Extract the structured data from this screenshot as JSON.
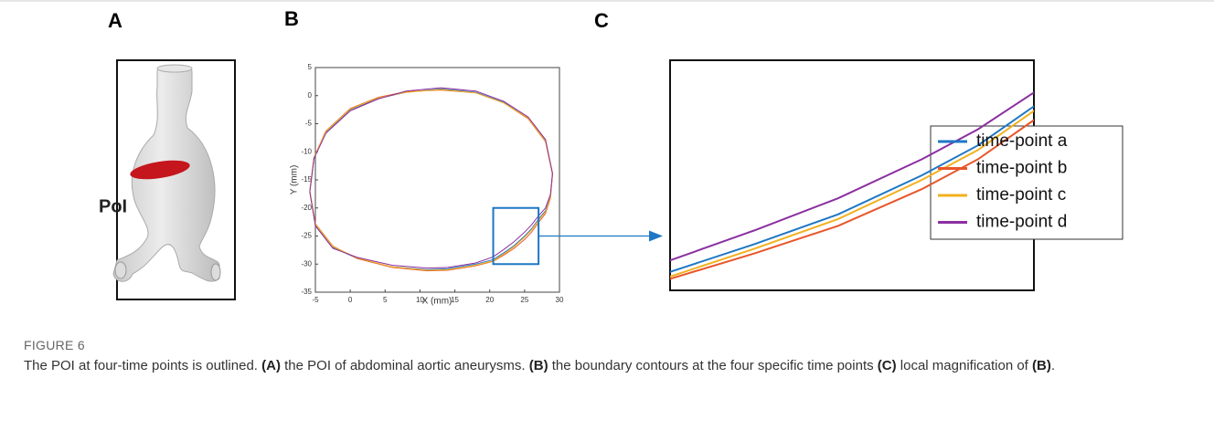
{
  "figure": {
    "panels": [
      "A",
      "B",
      "C"
    ],
    "poi_label": "PoI",
    "caption": {
      "label": "FIGURE 6",
      "segments": [
        {
          "text": "The POI at four-time points is outlined. ",
          "bold": false
        },
        {
          "text": "(A)",
          "bold": true
        },
        {
          "text": " the POI of abdominal aortic aneurysms. ",
          "bold": false
        },
        {
          "text": "(B)",
          "bold": true
        },
        {
          "text": " the boundary contours at the four specific time points ",
          "bold": false
        },
        {
          "text": "(C)",
          "bold": true
        },
        {
          "text": " local magnification of ",
          "bold": false
        },
        {
          "text": "(B)",
          "bold": true
        },
        {
          "text": ".",
          "bold": false
        }
      ]
    }
  },
  "chart_data": {
    "type": "line",
    "xlabel": "X (mm)",
    "ylabel": "Y (mm)",
    "xlim": [
      -5,
      30
    ],
    "ylim": [
      -35,
      5
    ],
    "xticks": [
      -5,
      0,
      5,
      10,
      15,
      20,
      25,
      30
    ],
    "yticks": [
      -35,
      -30,
      -25,
      -20,
      -15,
      -10,
      -5,
      0,
      5
    ],
    "zoom": {
      "xlim": [
        20.5,
        27
      ],
      "ylim": [
        -30,
        -20
      ],
      "color": "#1f77c4"
    },
    "series": [
      {
        "name": "time-point a",
        "color": "#1f77c4",
        "x": [
          13,
          18,
          22,
          25.5,
          28,
          29,
          28.7,
          28,
          27,
          26,
          25,
          23.5,
          22,
          20.5,
          18,
          14,
          11,
          6,
          1,
          -2.5,
          -5,
          -5.8,
          -5.2,
          -3.5,
          0,
          4,
          8,
          13
        ],
        "values": [
          1.2,
          0.6,
          -1.2,
          -4,
          -8,
          -14,
          -18,
          -20.5,
          -22,
          -23.7,
          -25,
          -26.7,
          -28,
          -29.2,
          -30,
          -30.8,
          -31,
          -30.5,
          -29,
          -27,
          -23,
          -17,
          -11,
          -6.5,
          -2.5,
          -0.5,
          0.6,
          1.2
        ]
      },
      {
        "name": "time-point b",
        "color": "#e8562a",
        "x": [
          13,
          18,
          22,
          25.5,
          28,
          29,
          28.7,
          28,
          27,
          26,
          25,
          23.5,
          22,
          20.5,
          18,
          14,
          11,
          6,
          1,
          -2.5,
          -5,
          -5.8,
          -5.2,
          -3.5,
          0,
          4,
          8,
          13
        ],
        "values": [
          1.0,
          0.5,
          -1.3,
          -4.1,
          -8.2,
          -14,
          -18.3,
          -21,
          -22.6,
          -24.3,
          -25.6,
          -27.2,
          -28.4,
          -29.5,
          -30.3,
          -31.1,
          -31.2,
          -30.6,
          -29,
          -26.8,
          -22.8,
          -17,
          -11,
          -6.3,
          -2.3,
          -0.3,
          0.7,
          1.0
        ]
      },
      {
        "name": "time-point c",
        "color": "#f2b01e",
        "x": [
          13,
          18,
          22,
          25.5,
          28,
          29,
          28.7,
          28,
          27,
          26,
          25,
          23.5,
          22,
          20.5,
          18,
          14,
          11,
          6,
          1,
          -2.5,
          -5,
          -5.8,
          -5.2,
          -3.5,
          0,
          4,
          8,
          13
        ],
        "values": [
          1.1,
          0.5,
          -1.3,
          -4,
          -8.1,
          -14,
          -18.1,
          -20.7,
          -22.2,
          -23.9,
          -25.2,
          -26.9,
          -28.2,
          -29.4,
          -30.2,
          -31,
          -31.1,
          -30.5,
          -28.9,
          -26.9,
          -22.9,
          -17,
          -11,
          -6.4,
          -2.4,
          -0.4,
          0.6,
          1.1
        ]
      },
      {
        "name": "time-point d",
        "color": "#8b2fa0",
        "x": [
          13,
          18,
          22,
          25.5,
          28,
          29,
          28.7,
          28,
          27,
          26,
          25,
          23.5,
          22,
          20.5,
          18,
          14,
          11,
          6,
          1,
          -2.5,
          -5,
          -5.8,
          -5.2,
          -3.5,
          0,
          4,
          8,
          13
        ],
        "values": [
          1.4,
          0.8,
          -1,
          -3.8,
          -7.8,
          -13.8,
          -17.6,
          -20,
          -21.4,
          -23,
          -24.3,
          -26,
          -27.4,
          -28.7,
          -29.8,
          -30.6,
          -30.7,
          -30.2,
          -28.8,
          -27.2,
          -23.2,
          -17.2,
          -11.2,
          -6.7,
          -2.7,
          -0.6,
          0.8,
          1.4
        ]
      }
    ]
  }
}
